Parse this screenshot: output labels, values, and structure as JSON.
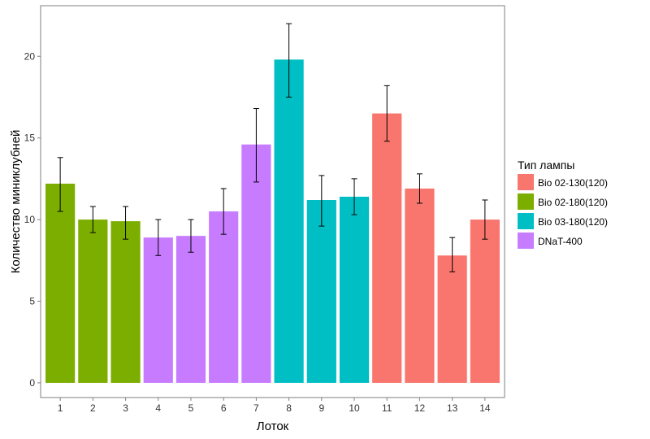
{
  "chart_data": {
    "type": "bar",
    "xlabel": "Лоток",
    "ylabel": "Количество миниклубней",
    "ylim": [
      -0.9,
      23.1
    ],
    "yticks": [
      0,
      5,
      10,
      15,
      20
    ],
    "grid": false,
    "legend": {
      "title": "Тип лампы",
      "placement": "right",
      "entries": [
        {
          "name": "Bio 02-130(120)",
          "color": "#F8766D"
        },
        {
          "name": "Bio 02-180(120)",
          "color": "#7CAE00"
        },
        {
          "name": "Bio 03-180(120)",
          "color": "#00BFC4"
        },
        {
          "name": "DNaT-400",
          "color": "#C77CFF"
        }
      ]
    },
    "categories": [
      "1",
      "2",
      "3",
      "4",
      "5",
      "6",
      "7",
      "8",
      "9",
      "10",
      "11",
      "12",
      "13",
      "14"
    ],
    "values": [
      12.2,
      10.0,
      9.9,
      8.9,
      9.0,
      10.5,
      14.6,
      19.8,
      11.2,
      11.4,
      16.5,
      11.9,
      7.8,
      10.0
    ],
    "error_low": [
      10.5,
      9.2,
      8.8,
      7.8,
      8.0,
      9.1,
      12.3,
      17.5,
      9.6,
      10.3,
      14.8,
      11.0,
      6.8,
      8.8
    ],
    "error_high": [
      13.8,
      10.8,
      10.8,
      10.0,
      10.0,
      11.9,
      16.8,
      22.0,
      12.7,
      12.5,
      18.2,
      12.8,
      8.9,
      11.2
    ],
    "groups": [
      "Bio 02-180(120)",
      "Bio 02-180(120)",
      "Bio 02-180(120)",
      "DNaT-400",
      "DNaT-400",
      "DNaT-400",
      "DNaT-400",
      "Bio 03-180(120)",
      "Bio 03-180(120)",
      "Bio 03-180(120)",
      "Bio 02-130(120)",
      "Bio 02-130(120)",
      "Bio 02-130(120)",
      "Bio 02-130(120)"
    ]
  }
}
